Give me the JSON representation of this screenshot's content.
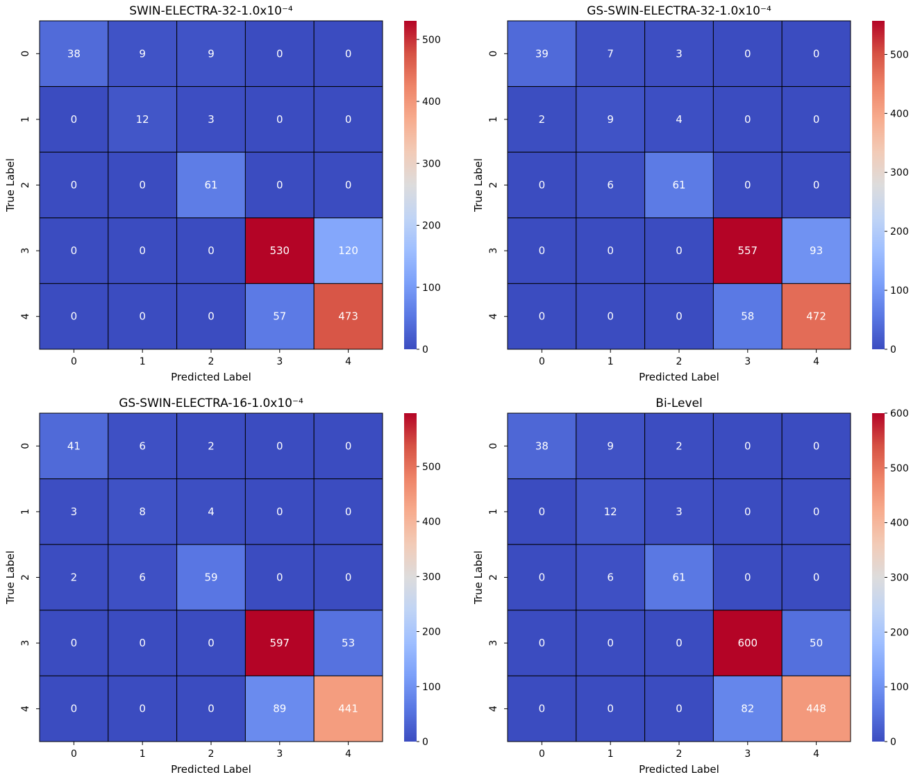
{
  "chart_data": [
    {
      "type": "heatmap",
      "title": "SWIN-ELECTRA-32-1.0x10⁻⁴",
      "xlabel": "Predicted Label",
      "ylabel": "True Label",
      "x_categories": [
        "0",
        "1",
        "2",
        "3",
        "4"
      ],
      "y_categories": [
        "0",
        "1",
        "2",
        "3",
        "4"
      ],
      "values": [
        [
          38,
          9,
          9,
          0,
          0
        ],
        [
          0,
          12,
          3,
          0,
          0
        ],
        [
          0,
          0,
          61,
          0,
          0
        ],
        [
          0,
          0,
          0,
          530,
          120
        ],
        [
          0,
          0,
          0,
          57,
          473
        ]
      ],
      "colorbar": {
        "range": [
          0,
          530
        ],
        "ticks": [
          "0",
          "100",
          "200",
          "300",
          "400",
          "500"
        ],
        "colormap": "coolwarm"
      }
    },
    {
      "type": "heatmap",
      "title": "GS-SWIN-ELECTRA-32-1.0x10⁻⁴",
      "xlabel": "Predicted Label",
      "ylabel": "True Label",
      "x_categories": [
        "0",
        "1",
        "2",
        "3",
        "4"
      ],
      "y_categories": [
        "0",
        "1",
        "2",
        "3",
        "4"
      ],
      "values": [
        [
          39,
          7,
          3,
          0,
          0
        ],
        [
          2,
          9,
          4,
          0,
          0
        ],
        [
          0,
          6,
          61,
          0,
          0
        ],
        [
          0,
          0,
          0,
          557,
          93
        ],
        [
          0,
          0,
          0,
          58,
          472
        ]
      ],
      "colorbar": {
        "range": [
          0,
          557
        ],
        "ticks": [
          "0",
          "100",
          "200",
          "300",
          "400",
          "500"
        ],
        "colormap": "coolwarm"
      }
    },
    {
      "type": "heatmap",
      "title": "GS-SWIN-ELECTRA-16-1.0x10⁻⁴",
      "xlabel": "Predicted Label",
      "ylabel": "True Label",
      "x_categories": [
        "0",
        "1",
        "2",
        "3",
        "4"
      ],
      "y_categories": [
        "0",
        "1",
        "2",
        "3",
        "4"
      ],
      "values": [
        [
          41,
          6,
          2,
          0,
          0
        ],
        [
          3,
          8,
          4,
          0,
          0
        ],
        [
          2,
          6,
          59,
          0,
          0
        ],
        [
          0,
          0,
          0,
          597,
          53
        ],
        [
          0,
          0,
          0,
          89,
          441
        ]
      ],
      "colorbar": {
        "range": [
          0,
          597
        ],
        "ticks": [
          "0",
          "100",
          "200",
          "300",
          "400",
          "500"
        ],
        "colormap": "coolwarm"
      }
    },
    {
      "type": "heatmap",
      "title": "Bi-Level",
      "xlabel": "Predicted Label",
      "ylabel": "True Label",
      "x_categories": [
        "0",
        "1",
        "2",
        "3",
        "4"
      ],
      "y_categories": [
        "0",
        "1",
        "2",
        "3",
        "4"
      ],
      "values": [
        [
          38,
          9,
          2,
          0,
          0
        ],
        [
          0,
          12,
          3,
          0,
          0
        ],
        [
          0,
          6,
          61,
          0,
          0
        ],
        [
          0,
          0,
          0,
          600,
          50
        ],
        [
          0,
          0,
          0,
          82,
          448
        ]
      ],
      "colorbar": {
        "range": [
          0,
          600
        ],
        "ticks": [
          "0",
          "100",
          "200",
          "300",
          "400",
          "500",
          "600"
        ],
        "colormap": "coolwarm"
      }
    }
  ]
}
